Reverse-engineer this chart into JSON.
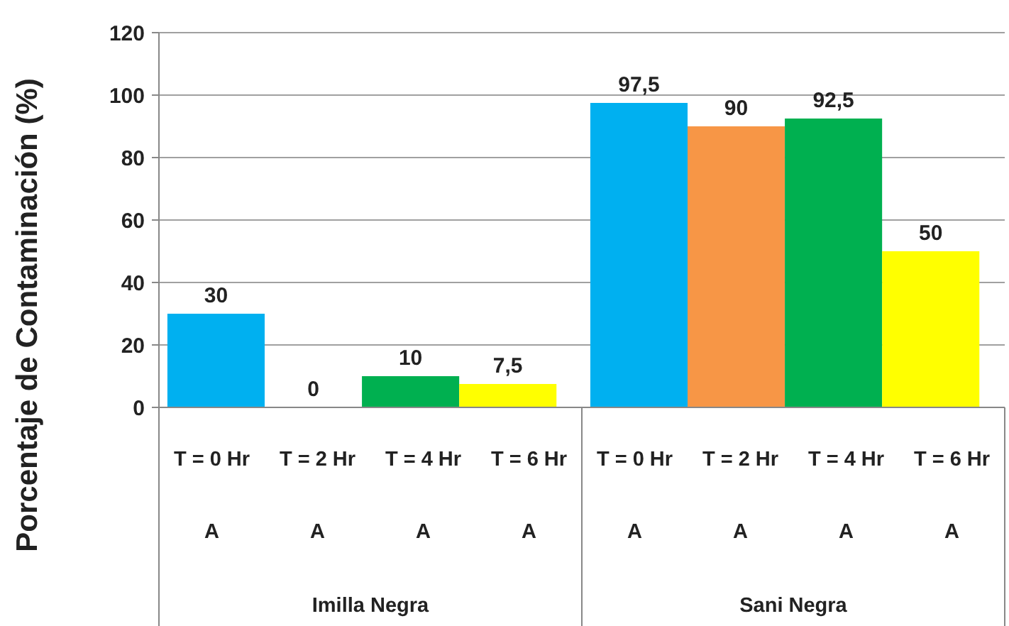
{
  "chart_data": {
    "type": "bar",
    "ylabel": "Porcentaje de Contaminación (%)",
    "categories": [
      "T = 0 Hr",
      "T = 2 Hr",
      "T = 4 Hr",
      "T = 6 Hr",
      "T = 0 Hr",
      "T = 2 Hr",
      "T = 4 Hr",
      "T = 6 Hr"
    ],
    "values": [
      30,
      0,
      10,
      7.5,
      97.5,
      90,
      92.5,
      50
    ],
    "colors": [
      "#00b0f0",
      "#f79646",
      "#00b050",
      "#ffff00",
      "#00b0f0",
      "#f79646",
      "#00b050",
      "#ffff00"
    ],
    "value_labels": [
      "30",
      "0",
      "10",
      "7,5",
      "97,5",
      "90",
      "92,5",
      "50"
    ],
    "ylim": [
      0,
      120
    ],
    "yticks": [
      0,
      20,
      40,
      60,
      80,
      100,
      120
    ],
    "grid": "y",
    "annotations": [
      "A",
      "A",
      "A",
      "A",
      "A",
      "A",
      "A",
      "A",
      "Imilla Negra",
      "Sani Negra"
    ]
  }
}
